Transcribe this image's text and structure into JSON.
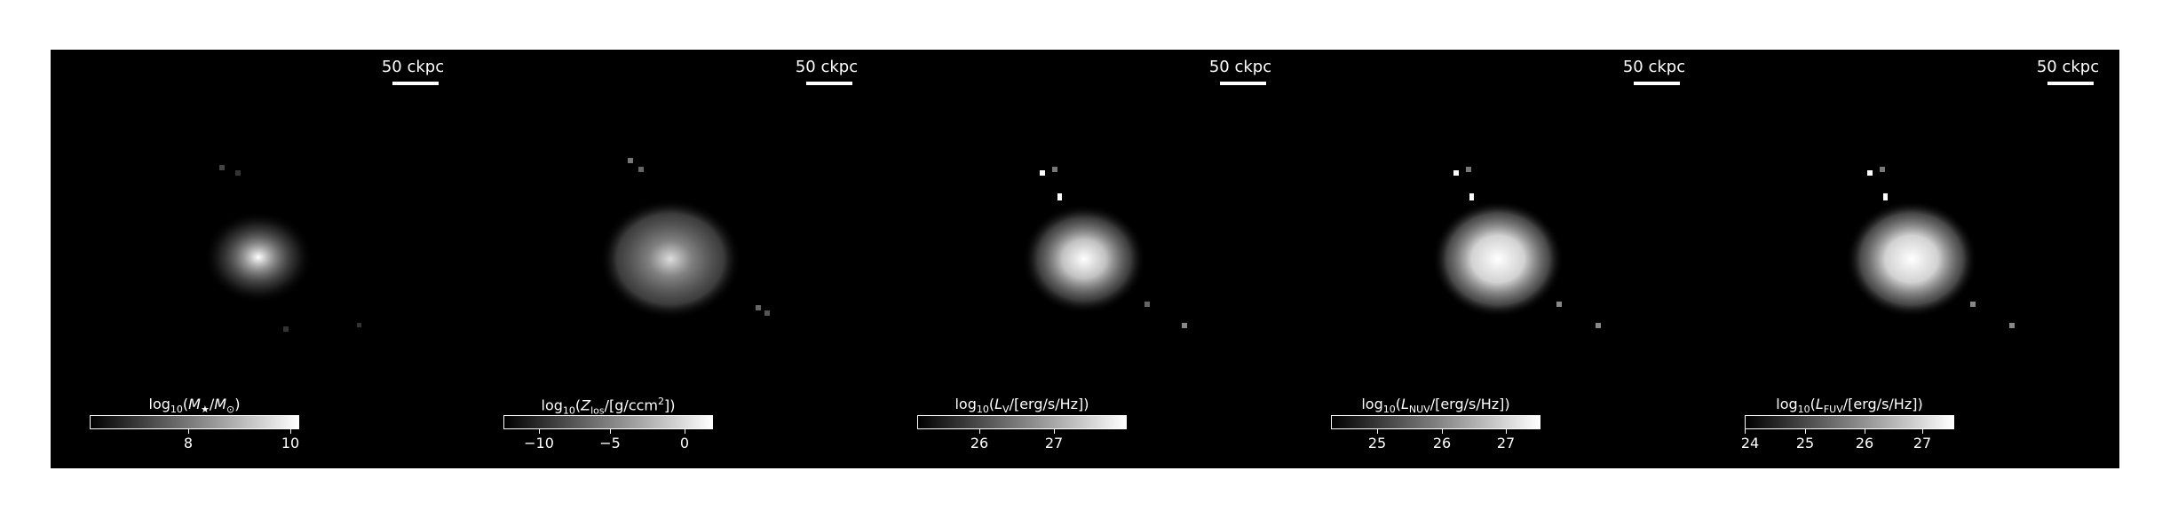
{
  "panels": [
    {
      "scalebar": "50 ckpc",
      "colorbar_label": [
        "log",
        "10",
        "(",
        "M",
        "★",
        "/",
        "M",
        "⊙",
        ")",
        "",
        ""
      ],
      "ticks": [
        "8",
        "10"
      ]
    },
    {
      "scalebar": "50 ckpc",
      "colorbar_label": [
        "log",
        "10",
        "(",
        "Z",
        "los",
        "/[g/ccm",
        "2",
        "])",
        "",
        "",
        ""
      ],
      "ticks": [
        "−10",
        "−5",
        "0"
      ]
    },
    {
      "scalebar": "50 ckpc",
      "colorbar_label": [
        "log",
        "10",
        "(",
        "L",
        "V",
        "/[erg/s/Hz])",
        "",
        "",
        "",
        "",
        ""
      ],
      "ticks": [
        "26",
        "27"
      ]
    },
    {
      "scalebar": "50 ckpc",
      "colorbar_label": [
        "log",
        "10",
        "(",
        "L",
        "NUV",
        "/[erg/s/Hz])",
        "",
        "",
        "",
        "",
        ""
      ],
      "ticks": [
        "25",
        "26",
        "27"
      ]
    },
    {
      "scalebar": "50 ckpc",
      "colorbar_label": [
        "log",
        "10",
        "(",
        "L",
        "FUV",
        "/[erg/s/Hz])",
        "",
        "",
        "",
        "",
        ""
      ],
      "ticks": [
        "24",
        "25",
        "26",
        "27"
      ]
    }
  ]
}
